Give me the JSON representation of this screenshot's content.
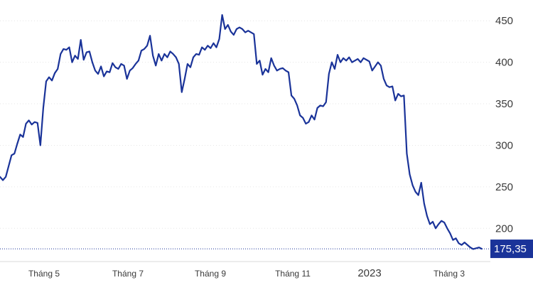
{
  "chart_data": {
    "type": "line",
    "title": "",
    "xlabel": "",
    "ylabel": "",
    "ylim": [
      160,
      475
    ],
    "y_ticks": [
      "200",
      "250",
      "300",
      "350",
      "400",
      "450"
    ],
    "x_tick_labels": [
      "Tháng 5",
      "Tháng 7",
      "Tháng 9",
      "Tháng 11",
      "2023",
      "Tháng 3"
    ],
    "last_value": 175.35,
    "last_value_label": "175,35",
    "grid": true,
    "series": [
      {
        "values": [
          262,
          258,
          262,
          275,
          288,
          290,
          302,
          313,
          310,
          326,
          330,
          325,
          328,
          327,
          300,
          345,
          377,
          382,
          378,
          387,
          392,
          410,
          416,
          415,
          418,
          400,
          408,
          404,
          427,
          403,
          412,
          413,
          400,
          390,
          386,
          395,
          383,
          389,
          388,
          399,
          394,
          392,
          398,
          396,
          380,
          390,
          393,
          398,
          402,
          414,
          416,
          420,
          432,
          408,
          396,
          410,
          402,
          410,
          406,
          413,
          410,
          406,
          398,
          364,
          380,
          398,
          394,
          406,
          410,
          409,
          418,
          415,
          420,
          417,
          423,
          418,
          428,
          457,
          440,
          445,
          437,
          433,
          440,
          442,
          440,
          436,
          438,
          436,
          434,
          398,
          402,
          385,
          392,
          388,
          405,
          396,
          390,
          392,
          393,
          390,
          388,
          360,
          356,
          348,
          336,
          333,
          326,
          328,
          336,
          331,
          345,
          348,
          347,
          352,
          386,
          400,
          392,
          409,
          400,
          405,
          402,
          406,
          400,
          402,
          404,
          400,
          405,
          403,
          401,
          390,
          395,
          400,
          396,
          380,
          372,
          370,
          371,
          354,
          362,
          359,
          360,
          290,
          265,
          252,
          244,
          240,
          255,
          230,
          215,
          205,
          208,
          200,
          205,
          209,
          207,
          200,
          194,
          186,
          188,
          182,
          180,
          183,
          180,
          177,
          175,
          176,
          177,
          175.35
        ]
      }
    ]
  }
}
